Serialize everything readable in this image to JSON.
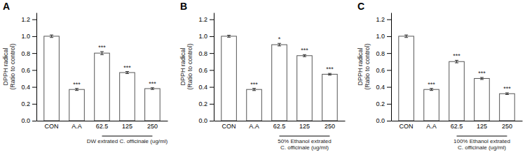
{
  "chart_data": [
    {
      "type": "bar",
      "title": "A",
      "categories": [
        "CON",
        "A.A",
        "62.5",
        "125",
        "250"
      ],
      "values": [
        1.0,
        0.37,
        0.8,
        0.57,
        0.38
      ],
      "errors": [
        0.015,
        0.012,
        0.018,
        0.012,
        0.01
      ],
      "annotations": [
        null,
        "***",
        "***",
        "***",
        "***"
      ],
      "xlabel": "DW extrated C. officinale (ug/ml)",
      "ylabel": "DPPH radical\n(Ratio to control)",
      "color": "#ffffff",
      "ylim": [
        0,
        1.28
      ],
      "yticks": [
        {
          "value": 0.0,
          "label": "0.0"
        },
        0.2,
        0.4,
        0.6,
        0.8,
        {
          "value": 1.0,
          "label": "1.0"
        },
        1.2
      ]
    },
    {
      "type": "bar",
      "title": "B",
      "categories": [
        "CON",
        "A.A",
        "62.5",
        "125",
        "250"
      ],
      "values": [
        1.0,
        0.37,
        0.9,
        0.77,
        0.55
      ],
      "errors": [
        0.012,
        0.013,
        0.015,
        0.012,
        0.01
      ],
      "annotations": [
        null,
        "***",
        "*",
        "***",
        "***"
      ],
      "xlabel": "50% Ethanol extrated\nC. officinale (ug/ml)",
      "ylabel": "DPPH radical\n(Ratio to control)",
      "color": "#ffffff",
      "ylim": [
        0,
        1.28
      ],
      "yticks": [
        {
          "value": 0.0,
          "label": "0.0"
        },
        0.2,
        0.4,
        0.6,
        0.8,
        {
          "value": 1.0,
          "label": "1.0"
        },
        1.2
      ]
    },
    {
      "type": "bar",
      "title": "C",
      "categories": [
        "CON",
        "A.A",
        "62.5",
        "125",
        "250"
      ],
      "values": [
        1.0,
        0.37,
        0.7,
        0.5,
        0.32
      ],
      "errors": [
        0.015,
        0.012,
        0.015,
        0.012,
        0.01
      ],
      "annotations": [
        null,
        "***",
        "***",
        "***",
        "***"
      ],
      "xlabel": "100% Ethanol extrated\nC. officinale (ug/ml)",
      "ylabel": "DPPH radical\n(Ratio to control)",
      "color": "#ffffff",
      "ylim": [
        0,
        1.28
      ],
      "yticks": [
        {
          "value": 0.0,
          "label": "0.0"
        },
        0.2,
        0.4,
        0.6,
        0.8,
        {
          "value": 1.0,
          "label": "1.0"
        },
        1.2
      ]
    }
  ]
}
